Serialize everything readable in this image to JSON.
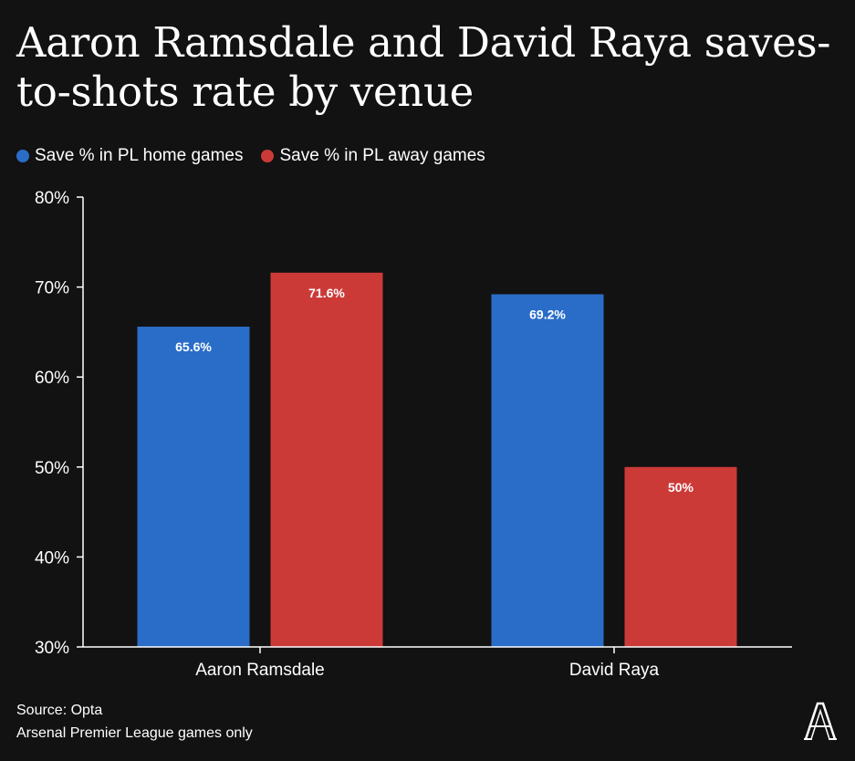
{
  "header": {
    "title": "Aaron Ramsdale and David Raya saves-to-shots rate by venue"
  },
  "legend": {
    "items": [
      {
        "label": "Save % in PL home games",
        "color": "#2a6dc8"
      },
      {
        "label": "Save % in PL away games",
        "color": "#cc3a38"
      }
    ]
  },
  "footer": {
    "source": "Source: Opta",
    "note": "Arsenal Premier League games only"
  },
  "logo": {
    "name": "the-athletic-logo-icon",
    "letter": "A"
  },
  "chart_data": {
    "type": "bar",
    "categories": [
      "Aaron Ramsdale",
      "David Raya"
    ],
    "series": [
      {
        "name": "Save % in PL home games",
        "color": "#2a6dc8",
        "values": [
          65.6,
          69.2
        ],
        "labels": [
          "65.6%",
          "69.2%"
        ]
      },
      {
        "name": "Save % in PL away games",
        "color": "#cc3a38",
        "values": [
          71.6,
          50.0
        ],
        "labels": [
          "71.6%",
          "50%"
        ]
      }
    ],
    "ylim": [
      30,
      80
    ],
    "yticks": [
      30,
      40,
      50,
      60,
      70,
      80
    ],
    "ytick_labels": [
      "30%",
      "40%",
      "50%",
      "60%",
      "70%",
      "80%"
    ],
    "xlabel": "",
    "ylabel": "",
    "grid": false,
    "legend_position": "top-left"
  }
}
